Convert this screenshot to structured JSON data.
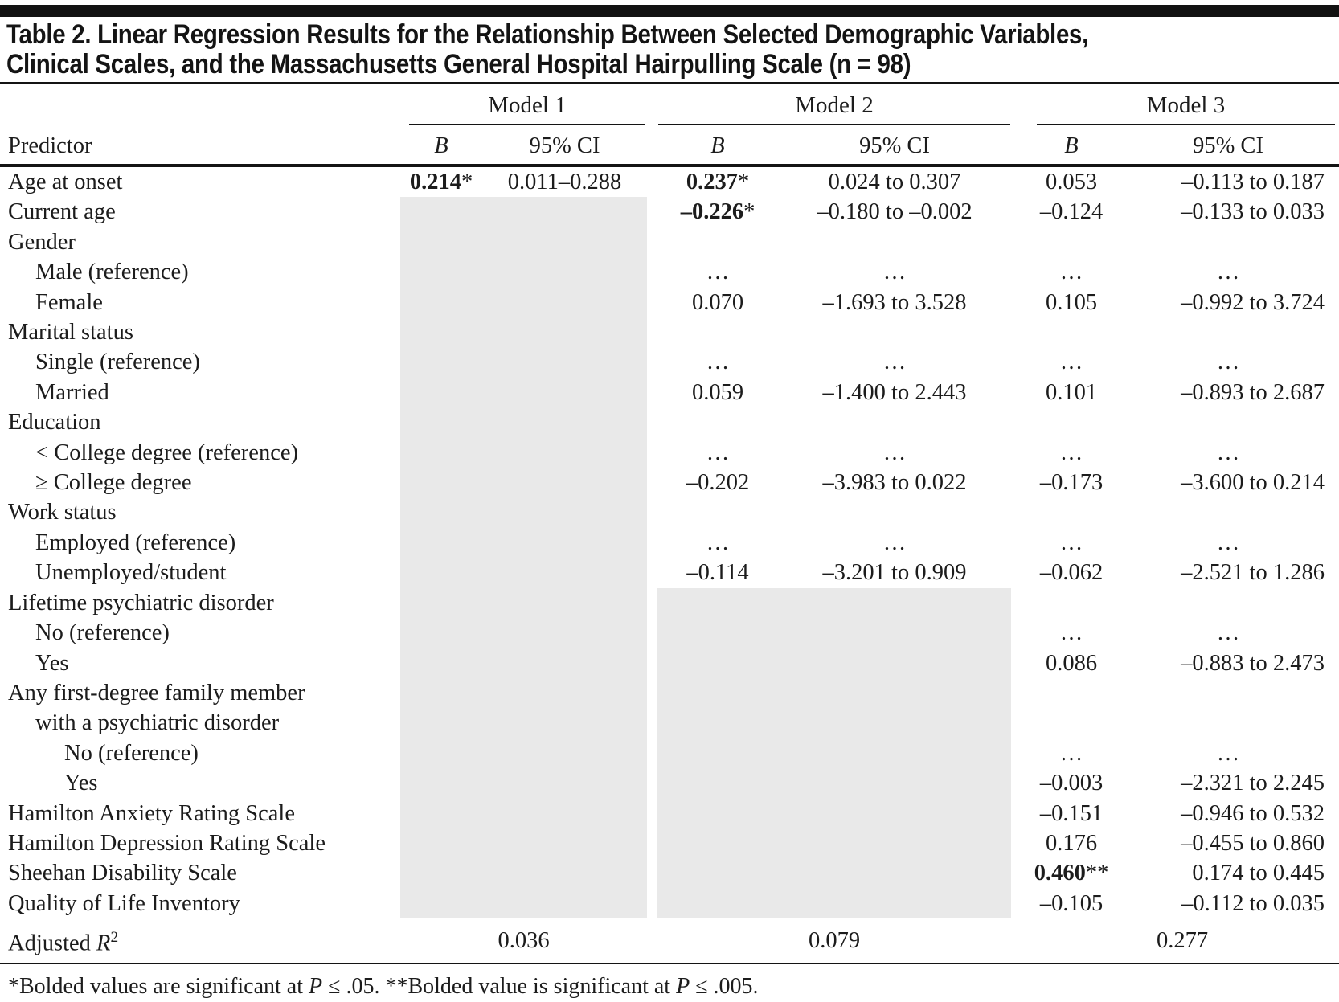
{
  "colors": {
    "shaded_cell": "#e9e9e9",
    "rule": "#141414",
    "text": "#1c1c1c"
  },
  "title": {
    "line1": "Table 2. Linear Regression Results for the Relationship Between Selected Demographic Variables,",
    "line2": "Clinical Scales, and the Massachusetts General Hospital Hairpulling Scale (n = 98)"
  },
  "table": {
    "groups": [
      {
        "label": "Model 1"
      },
      {
        "label": "Model 2"
      },
      {
        "label": "Model 3"
      }
    ],
    "col_headers": {
      "predictor": "Predictor",
      "b": "B",
      "ci": "95% CI"
    },
    "m1_shaded_from_row": 1,
    "m2_shaded_from_row": 14,
    "rows": [
      {
        "label": "Age at onset",
        "indent": 0,
        "cells": [
          {
            "v": "0.214",
            "star": "*"
          },
          "0.011–0.288",
          {
            "v": "0.237",
            "star": "*"
          },
          "0.024 to 0.307",
          "0.053",
          "–0.113 to 0.187"
        ]
      },
      {
        "label": "Current age",
        "indent": 0,
        "cells": [
          null,
          null,
          {
            "v": "–0.226",
            "star": "*"
          },
          "–0.180 to –0.002",
          "–0.124",
          "–0.133 to 0.033"
        ]
      },
      {
        "label": "Gender",
        "indent": 0,
        "cells": [
          null,
          null,
          null,
          null,
          null,
          null
        ]
      },
      {
        "label": "Male (reference)",
        "indent": 1,
        "cells": [
          null,
          null,
          "…",
          "…",
          "…",
          "…"
        ]
      },
      {
        "label": "Female",
        "indent": 1,
        "cells": [
          null,
          null,
          "0.070",
          "–1.693 to 3.528",
          "0.105",
          "–0.992 to 3.724"
        ]
      },
      {
        "label": "Marital status",
        "indent": 0,
        "cells": [
          null,
          null,
          null,
          null,
          null,
          null
        ]
      },
      {
        "label": "Single (reference)",
        "indent": 1,
        "cells": [
          null,
          null,
          "…",
          "…",
          "…",
          "…"
        ]
      },
      {
        "label": "Married",
        "indent": 1,
        "cells": [
          null,
          null,
          "0.059",
          "–1.400 to 2.443",
          "0.101",
          "–0.893 to 2.687"
        ]
      },
      {
        "label": "Education",
        "indent": 0,
        "cells": [
          null,
          null,
          null,
          null,
          null,
          null
        ]
      },
      {
        "label": "< College degree (reference)",
        "indent": 1,
        "cells": [
          null,
          null,
          "…",
          "…",
          "…",
          "…"
        ]
      },
      {
        "label": "≥ College degree",
        "indent": 1,
        "cells": [
          null,
          null,
          "–0.202",
          "–3.983 to 0.022",
          "–0.173",
          "–3.600 to 0.214"
        ]
      },
      {
        "label": "Work status",
        "indent": 0,
        "cells": [
          null,
          null,
          null,
          null,
          null,
          null
        ]
      },
      {
        "label": "Employed (reference)",
        "indent": 1,
        "cells": [
          null,
          null,
          "…",
          "…",
          "…",
          "…"
        ]
      },
      {
        "label": "Unemployed/student",
        "indent": 1,
        "cells": [
          null,
          null,
          "–0.114",
          "–3.201 to 0.909",
          "–0.062",
          "–2.521 to 1.286"
        ]
      },
      {
        "label": "Lifetime psychiatric disorder",
        "indent": 0,
        "cells": [
          null,
          null,
          null,
          null,
          null,
          null
        ]
      },
      {
        "label": "No (reference)",
        "indent": 1,
        "cells": [
          null,
          null,
          null,
          null,
          "…",
          "…"
        ]
      },
      {
        "label": "Yes",
        "indent": 1,
        "cells": [
          null,
          null,
          null,
          null,
          "0.086",
          "–0.883 to 2.473"
        ]
      },
      {
        "label": "Any first-degree family member",
        "indent": 0,
        "cells": [
          null,
          null,
          null,
          null,
          null,
          null
        ]
      },
      {
        "label": "with a psychiatric disorder",
        "indent": 1,
        "cells": [
          null,
          null,
          null,
          null,
          null,
          null
        ]
      },
      {
        "label": "No (reference)",
        "indent": 2,
        "cells": [
          null,
          null,
          null,
          null,
          "…",
          "…"
        ]
      },
      {
        "label": "Yes",
        "indent": 2,
        "cells": [
          null,
          null,
          null,
          null,
          "–0.003",
          "–2.321 to 2.245"
        ]
      },
      {
        "label": "Hamilton Anxiety Rating Scale",
        "indent": 0,
        "cells": [
          null,
          null,
          null,
          null,
          "–0.151",
          "–0.946 to 0.532"
        ]
      },
      {
        "label": "Hamilton Depression Rating Scale",
        "indent": 0,
        "cells": [
          null,
          null,
          null,
          null,
          "0.176",
          "–0.455 to 0.860"
        ]
      },
      {
        "label": "Sheehan Disability Scale",
        "indent": 0,
        "cells": [
          null,
          null,
          null,
          null,
          {
            "v": "0.460",
            "star": "**"
          },
          "0.174 to 0.445"
        ]
      },
      {
        "label": "Quality of Life Inventory",
        "indent": 0,
        "cells": [
          null,
          null,
          null,
          null,
          "–0.105",
          "–0.112 to 0.035"
        ]
      }
    ],
    "r2_row": {
      "label_prefix": "Adjusted ",
      "label_symbol": "R",
      "label_sup": "2",
      "values": [
        "0.036",
        "0.079",
        "0.277"
      ]
    }
  },
  "footnote": {
    "part1": "*Bolded values are significant at ",
    "p1": "P",
    "part2": " ≤ .05. **Bolded value is significant at ",
    "p2": "P",
    "part3": " ≤ .005."
  }
}
